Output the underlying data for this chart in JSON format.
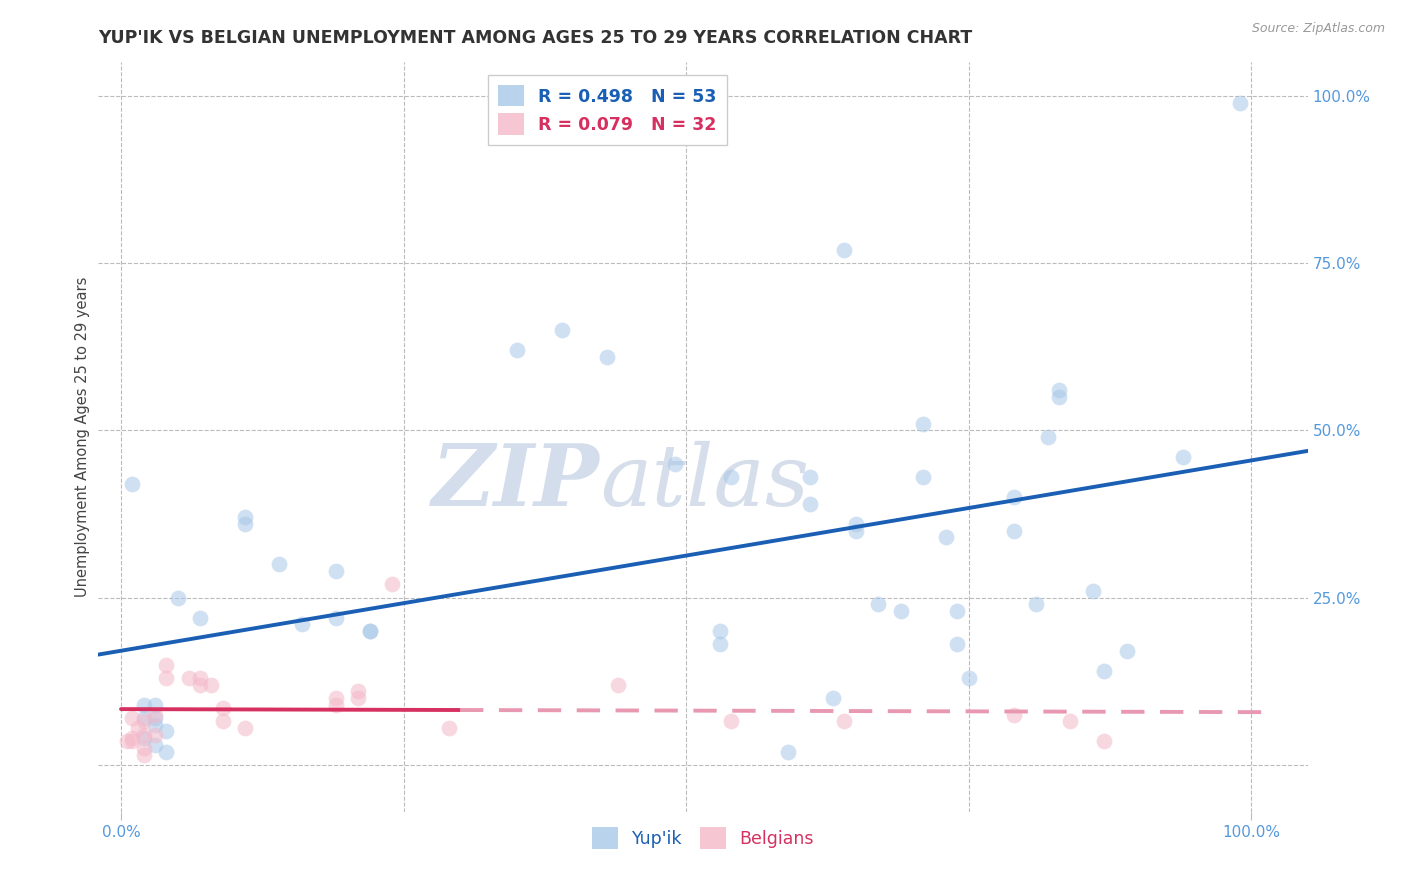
{
  "title": "YUP'IK VS BELGIAN UNEMPLOYMENT AMONG AGES 25 TO 29 YEARS CORRELATION CHART",
  "source": "Source: ZipAtlas.com",
  "ylabel": "Unemployment Among Ages 25 to 29 years",
  "xlim": [
    -0.02,
    1.05
  ],
  "ylim": [
    -0.07,
    1.05
  ],
  "xtick_positions": [
    0,
    0.25,
    0.5,
    0.75,
    1.0
  ],
  "xticklabels": [
    "0.0%",
    "",
    "",
    "",
    "100.0%"
  ],
  "ytick_positions": [
    0.0,
    0.25,
    0.5,
    0.75,
    1.0
  ],
  "yticklabels_right": [
    "",
    "25.0%",
    "50.0%",
    "75.0%",
    "100.0%"
  ],
  "yupik_color": "#a8c8e8",
  "belgian_color": "#f4b8c8",
  "yupik_line_color": "#1a5fb4",
  "belgian_line_solid_color": "#d63060",
  "belgian_line_dashed_color": "#e898b0",
  "watermark_zip": "ZIP",
  "watermark_atlas": "atlas",
  "background_color": "#ffffff",
  "grid_color": "#bbbbbb",
  "tick_color": "#5599dd",
  "yupik_scatter": [
    [
      0.01,
      0.42
    ],
    [
      0.02,
      0.07
    ],
    [
      0.02,
      0.09
    ],
    [
      0.02,
      0.04
    ],
    [
      0.03,
      0.06
    ],
    [
      0.03,
      0.09
    ],
    [
      0.03,
      0.07
    ],
    [
      0.03,
      0.03
    ],
    [
      0.04,
      0.05
    ],
    [
      0.04,
      0.02
    ],
    [
      0.05,
      0.25
    ],
    [
      0.07,
      0.22
    ],
    [
      0.11,
      0.36
    ],
    [
      0.11,
      0.37
    ],
    [
      0.14,
      0.3
    ],
    [
      0.16,
      0.21
    ],
    [
      0.19,
      0.29
    ],
    [
      0.19,
      0.22
    ],
    [
      0.22,
      0.2
    ],
    [
      0.22,
      0.2
    ],
    [
      0.35,
      0.62
    ],
    [
      0.39,
      0.65
    ],
    [
      0.43,
      0.61
    ],
    [
      0.49,
      0.45
    ],
    [
      0.53,
      0.18
    ],
    [
      0.53,
      0.2
    ],
    [
      0.54,
      0.43
    ],
    [
      0.59,
      0.02
    ],
    [
      0.61,
      0.39
    ],
    [
      0.61,
      0.43
    ],
    [
      0.63,
      0.1
    ],
    [
      0.64,
      0.77
    ],
    [
      0.65,
      0.36
    ],
    [
      0.65,
      0.35
    ],
    [
      0.67,
      0.24
    ],
    [
      0.69,
      0.23
    ],
    [
      0.71,
      0.51
    ],
    [
      0.71,
      0.43
    ],
    [
      0.73,
      0.34
    ],
    [
      0.74,
      0.23
    ],
    [
      0.74,
      0.18
    ],
    [
      0.75,
      0.13
    ],
    [
      0.79,
      0.35
    ],
    [
      0.79,
      0.4
    ],
    [
      0.81,
      0.24
    ],
    [
      0.82,
      0.49
    ],
    [
      0.83,
      0.55
    ],
    [
      0.83,
      0.56
    ],
    [
      0.86,
      0.26
    ],
    [
      0.87,
      0.14
    ],
    [
      0.89,
      0.17
    ],
    [
      0.94,
      0.46
    ],
    [
      0.99,
      0.99
    ]
  ],
  "belgian_scatter": [
    [
      0.005,
      0.035
    ],
    [
      0.01,
      0.07
    ],
    [
      0.01,
      0.04
    ],
    [
      0.01,
      0.035
    ],
    [
      0.015,
      0.055
    ],
    [
      0.02,
      0.065
    ],
    [
      0.02,
      0.045
    ],
    [
      0.02,
      0.025
    ],
    [
      0.02,
      0.015
    ],
    [
      0.03,
      0.045
    ],
    [
      0.03,
      0.075
    ],
    [
      0.04,
      0.15
    ],
    [
      0.04,
      0.13
    ],
    [
      0.06,
      0.13
    ],
    [
      0.07,
      0.13
    ],
    [
      0.07,
      0.12
    ],
    [
      0.08,
      0.12
    ],
    [
      0.09,
      0.085
    ],
    [
      0.09,
      0.065
    ],
    [
      0.11,
      0.055
    ],
    [
      0.19,
      0.1
    ],
    [
      0.19,
      0.09
    ],
    [
      0.21,
      0.11
    ],
    [
      0.21,
      0.1
    ],
    [
      0.24,
      0.27
    ],
    [
      0.29,
      0.055
    ],
    [
      0.44,
      0.12
    ],
    [
      0.54,
      0.065
    ],
    [
      0.64,
      0.065
    ],
    [
      0.79,
      0.075
    ],
    [
      0.84,
      0.065
    ],
    [
      0.87,
      0.035
    ]
  ],
  "title_fontsize": 12.5,
  "axis_label_fontsize": 10.5,
  "tick_fontsize": 11,
  "marker_size": 130,
  "marker_alpha": 0.55,
  "line_width": 2.8
}
